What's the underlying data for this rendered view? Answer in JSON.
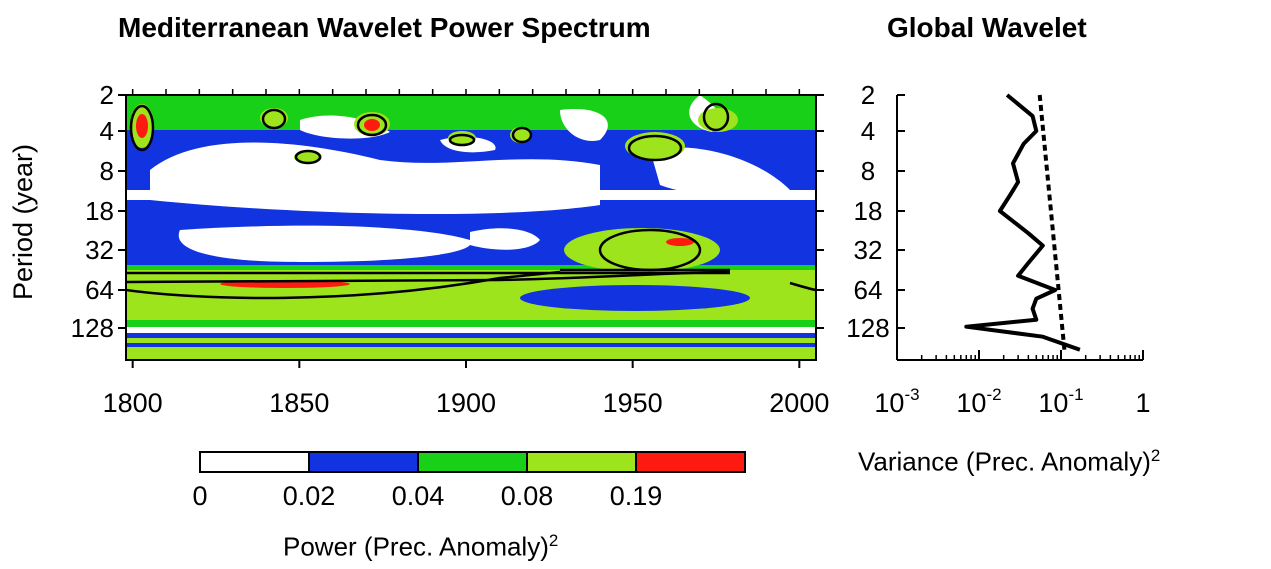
{
  "chart_data": [
    {
      "type": "heatmap",
      "title": "Mediterranean Wavelet Power Spectrum",
      "ylabel": "Period (year)",
      "xlabel": "",
      "x_ticks": [
        1800,
        1850,
        1900,
        1950,
        2000
      ],
      "xlim": [
        1798,
        2005
      ],
      "y_ticks": [
        2,
        4,
        8,
        18,
        32,
        64,
        128
      ],
      "y_scale": "log2-like, inverted (small periods at top)",
      "colorbar": {
        "label": "Power (Prec. Anomaly)",
        "label_superscript": "2",
        "ticks": [
          "0",
          "0.02",
          "0.04",
          "0.08",
          "0.19"
        ],
        "colors": [
          "#ffffff",
          "#1133e0",
          "#19d019",
          "#9ee41c",
          "#ff1a10"
        ]
      },
      "regions": [
        {
          "level": "0.19",
          "period_approx": 4,
          "years": [
            1799,
            1802
          ]
        },
        {
          "level": "0.19",
          "period_approx": 4,
          "years": [
            1867,
            1874
          ]
        },
        {
          "level": "0.19",
          "period_approx": 28,
          "years": [
            1958,
            1968
          ]
        },
        {
          "level": "0.19",
          "period_approx": 60,
          "years": [
            1826,
            1870
          ]
        },
        {
          "level": "0.02",
          "period_approx": 64,
          "years": [
            1930,
            1975
          ]
        }
      ]
    },
    {
      "type": "line",
      "title": "Global Wavelet",
      "xlabel": "Variance (Prec. Anomaly)",
      "xlabel_superscript": "2",
      "x_scale": "log",
      "x_ticks": [
        "10-3",
        "10-2",
        "10-1",
        "1"
      ],
      "xlim": [
        0.001,
        1
      ],
      "y_ticks": [
        2,
        4,
        8,
        18,
        32,
        64,
        128
      ],
      "series": [
        {
          "style": "solid",
          "points": [
            {
              "period": 2,
              "variance": 0.022
            },
            {
              "period": 3,
              "variance": 0.045
            },
            {
              "period": 4,
              "variance": 0.05
            },
            {
              "period": 5,
              "variance": 0.035
            },
            {
              "period": 7,
              "variance": 0.026
            },
            {
              "period": 10,
              "variance": 0.03
            },
            {
              "period": 13,
              "variance": 0.024
            },
            {
              "period": 18,
              "variance": 0.018
            },
            {
              "period": 25,
              "variance": 0.04
            },
            {
              "period": 30,
              "variance": 0.06
            },
            {
              "period": 40,
              "variance": 0.04
            },
            {
              "period": 50,
              "variance": 0.03
            },
            {
              "period": 64,
              "variance": 0.085
            },
            {
              "period": 75,
              "variance": 0.05
            },
            {
              "period": 90,
              "variance": 0.045
            },
            {
              "period": 110,
              "variance": 0.05
            },
            {
              "period": 125,
              "variance": 0.007
            },
            {
              "period": 150,
              "variance": 0.06
            },
            {
              "period": 190,
              "variance": 0.17
            }
          ]
        },
        {
          "style": "dashed",
          "points": [
            {
              "period": 2,
              "variance": 0.055
            },
            {
              "period": 190,
              "variance": 0.11
            }
          ]
        }
      ]
    }
  ]
}
